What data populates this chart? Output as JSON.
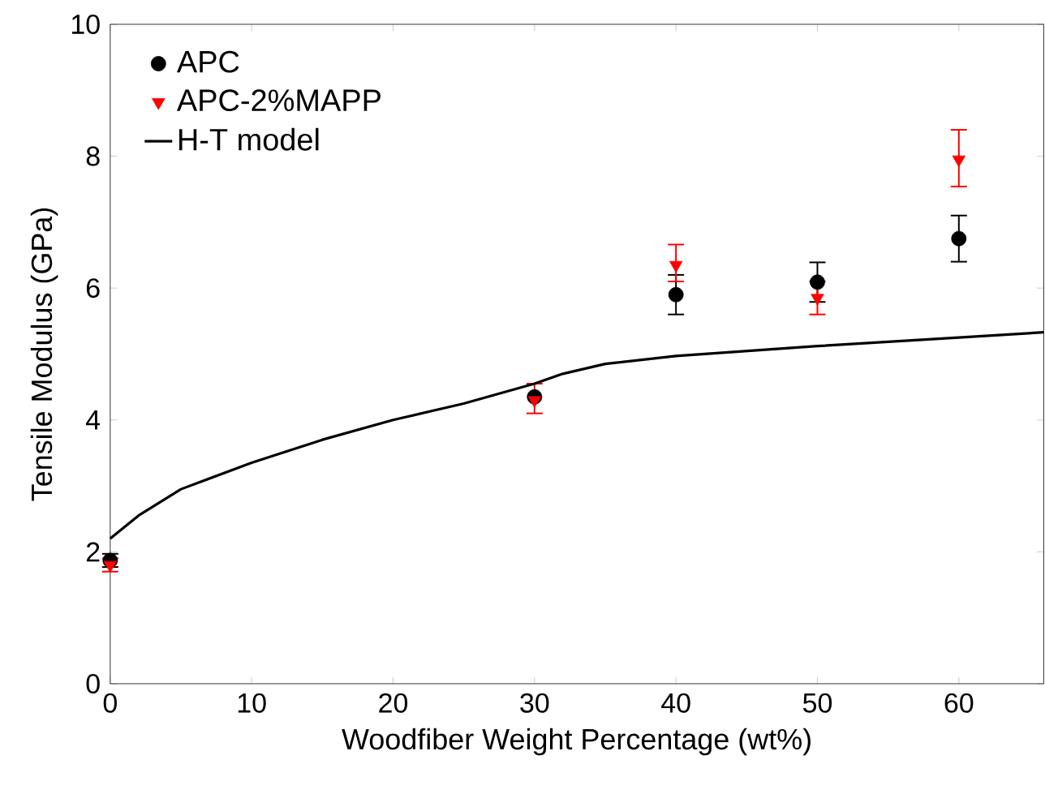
{
  "chart_data": {
    "type": "scatter",
    "xlabel": "Woodfiber Weight Percentage (wt%)",
    "ylabel": "Tensile Modulus (GPa)",
    "xlim": [
      0,
      66
    ],
    "xticks": [
      0,
      10,
      20,
      30,
      40,
      50,
      60
    ],
    "ylim": [
      0,
      10
    ],
    "yticks": [
      0,
      2,
      4,
      6,
      8,
      10
    ],
    "legend": "top left",
    "grid": false,
    "series": [
      {
        "name": "APC",
        "marker": "circle",
        "color": "#000000",
        "x": [
          0,
          30,
          40,
          50,
          60
        ],
        "values": [
          1.87,
          4.35,
          5.9,
          6.09,
          6.75
        ],
        "errors": [
          0.1,
          null,
          0.3,
          0.3,
          0.35
        ]
      },
      {
        "name": "APC-2%MAPP",
        "marker": "triangle",
        "color": "#ff0000",
        "x": [
          0,
          30,
          40,
          50,
          60
        ],
        "values": [
          1.8,
          4.3,
          6.35,
          5.85,
          7.95
        ],
        "errors": [
          0.1,
          [
            4.1,
            4.55
          ],
          [
            6.1,
            6.66
          ],
          [
            5.6,
            6.1
          ],
          [
            7.54,
            8.4
          ]
        ]
      },
      {
        "name": "H-T model",
        "type": "line",
        "marker": "none",
        "line_style": "solid",
        "color": "#000000",
        "x": [
          0,
          2,
          5,
          10,
          15,
          20,
          25,
          30,
          32,
          35,
          40,
          50,
          60,
          66
        ],
        "values": [
          2.2,
          2.55,
          2.95,
          3.35,
          3.7,
          4.0,
          4.25,
          4.55,
          4.7,
          4.85,
          4.97,
          5.12,
          5.25,
          5.33
        ]
      }
    ]
  }
}
